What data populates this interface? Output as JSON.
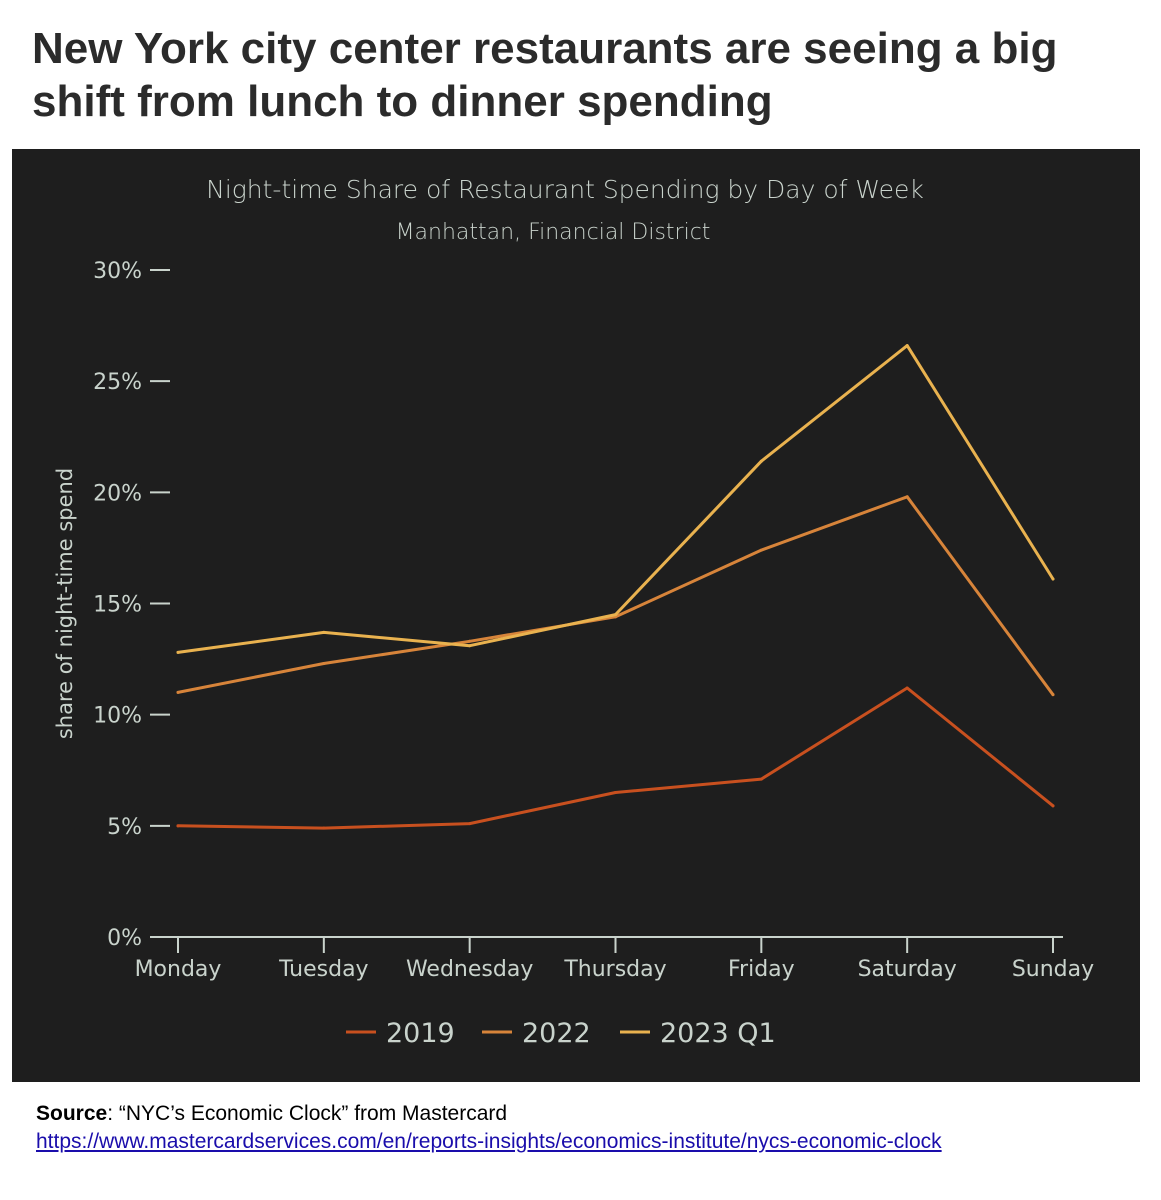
{
  "headline": "New York city center restaurants are seeing a big shift from lunch to dinner spending",
  "source": {
    "label": "Source",
    "text": ": “NYC’s Economic Clock” from Mastercard",
    "link": "https://www.mastercardservices.com/en/reports-insights/economics-institute/nycs-economic-clock"
  },
  "colors": {
    "panel_bg": "#1e1e1e",
    "text": "#c9d3cc",
    "s2019": "#c8501f",
    "s2022": "#d7843a",
    "s2023": "#e9b24f"
  },
  "chart_data": {
    "type": "line",
    "title": "Night-time Share of Restaurant Spending by Day of Week",
    "subtitle": "Manhattan, Financial District",
    "xlabel": "",
    "ylabel": "share of night-time spend",
    "categories": [
      "Monday",
      "Tuesday",
      "Wednesday",
      "Thursday",
      "Friday",
      "Saturday",
      "Sunday"
    ],
    "ylim": [
      0,
      30
    ],
    "yticks": [
      0,
      5,
      10,
      15,
      20,
      25,
      30
    ],
    "ytick_labels": [
      "0%",
      "5%",
      "10%",
      "15%",
      "20%",
      "25%",
      "30%"
    ],
    "grid": false,
    "legend_position": "bottom-center",
    "series": [
      {
        "name": "2019",
        "color": "#c8501f",
        "values": [
          5.0,
          4.9,
          5.1,
          6.5,
          7.1,
          11.2,
          5.9
        ]
      },
      {
        "name": "2022",
        "color": "#d7843a",
        "values": [
          11.0,
          12.3,
          13.3,
          14.4,
          17.4,
          19.8,
          10.9
        ]
      },
      {
        "name": "2023 Q1",
        "color": "#e9b24f",
        "values": [
          12.8,
          13.7,
          13.1,
          14.5,
          21.4,
          26.6,
          16.1
        ]
      }
    ]
  }
}
